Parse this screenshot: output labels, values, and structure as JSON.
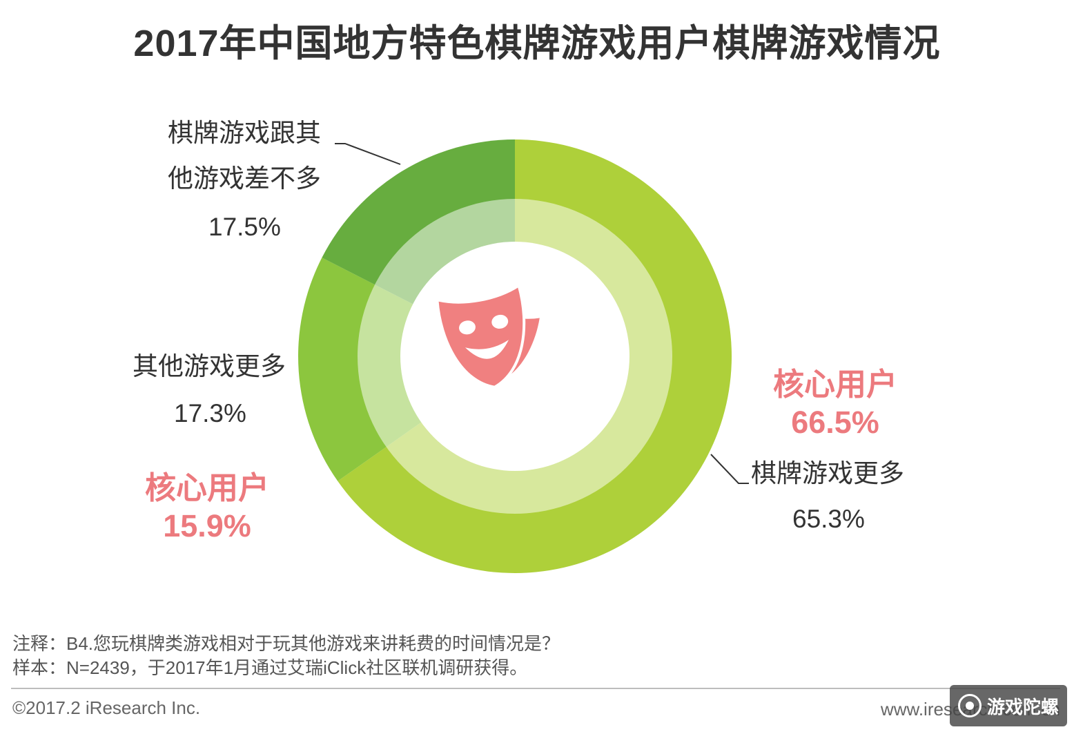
{
  "title": "2017年中国地方特色棋牌游戏用户棋牌游戏情况",
  "colors": {
    "dark_green": "#67ad3f",
    "mid_green": "#8cc63e",
    "light_green": "#aed03a",
    "inner_ring": "rgba(255,255,255,0.5)",
    "highlight": "#ec7a7e",
    "mask_icon": "#f08080"
  },
  "center_icon": "theater-masks-icon",
  "chart_data": {
    "type": "pie",
    "variant": "donut",
    "outer_ring": [
      {
        "label_line1": "棋牌游戏更多",
        "label_line2": "",
        "value": 65.3,
        "value_label": "65.3%",
        "color": "#aed03a"
      },
      {
        "label_line1": "其他游戏更多",
        "label_line2": "",
        "value": 17.3,
        "value_label": "17.3%",
        "color": "#8cc63e"
      },
      {
        "label_line1": "棋牌游戏跟其",
        "label_line2": "他游戏差不多",
        "value": 17.5,
        "value_label": "17.5%",
        "color": "#67ad3f"
      }
    ],
    "core_user_annotations": [
      {
        "label": "核心用户",
        "value": 66.5,
        "value_label": "66.5%"
      },
      {
        "label": "核心用户",
        "value": 15.9,
        "value_label": "15.9%"
      }
    ]
  },
  "notes": {
    "line1": "注释：B4.您玩棋牌类游戏相对于玩其他游戏来讲耗费的时间情况是？",
    "line2": "样本：N=2439，于2017年1月通过艾瑞iClick社区联机调研获得。"
  },
  "footer": {
    "copyright": "©2017.2 iResearch Inc.",
    "website": "www.iresearch.com.cn"
  },
  "watermark": {
    "text": "游戏陀螺"
  }
}
